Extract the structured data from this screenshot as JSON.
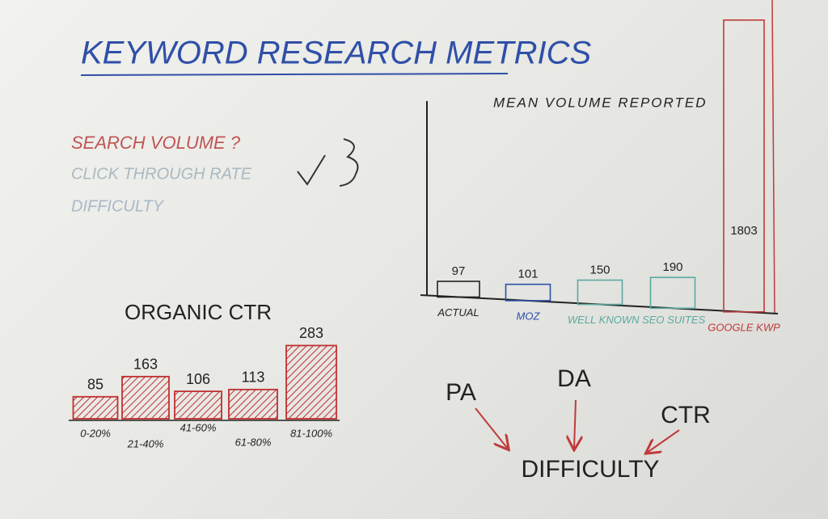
{
  "title": "KEYWORD RESEARCH METRICS",
  "bullets": [
    "SEARCH VOLUME ?",
    "CLICK THROUGH RATE",
    "DIFFICULTY"
  ],
  "diagram": {
    "sources": [
      "PA",
      "DA",
      "CTR"
    ],
    "target": "DIFFICULTY"
  },
  "chart_data": [
    {
      "type": "bar",
      "title": "MEAN VOLUME REPORTED",
      "categories": [
        "ACTUAL",
        "MOZ",
        "WELL KNOWN SEO SUITES",
        null,
        "GOOGLE KWP"
      ],
      "values": [
        97,
        101,
        150,
        190,
        1803
      ],
      "colors": [
        "#222222",
        "#2a4fa8",
        "#5aaaa0",
        "#5aaaa0",
        "#c03a3a"
      ]
    },
    {
      "type": "bar",
      "title": "ORGANIC CTR",
      "categories": [
        "0-20%",
        "21-40%",
        "41-60%",
        "61-80%",
        "81-100%"
      ],
      "values": [
        85,
        163,
        106,
        113,
        283
      ],
      "color": "#c03030"
    }
  ]
}
